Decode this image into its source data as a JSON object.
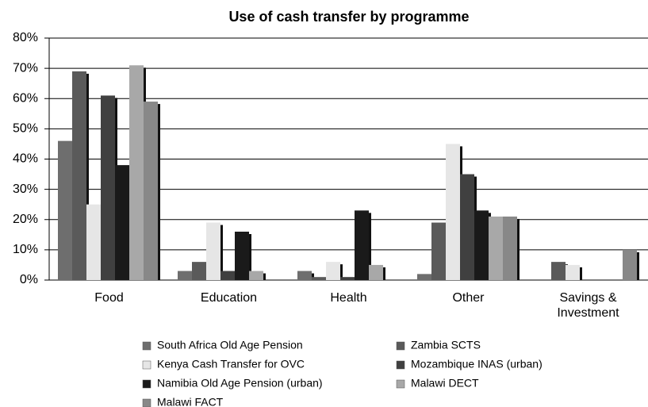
{
  "chart_data": {
    "type": "bar",
    "title": "Use of cash transfer by programme",
    "categories": [
      "Food",
      "Education",
      "Health",
      "Other",
      "Savings & Investment"
    ],
    "series": [
      {
        "name": "South Africa Old Age Pension",
        "color": "#6e6e6e",
        "values": [
          46,
          3,
          3,
          2,
          0
        ]
      },
      {
        "name": "Zambia SCTS",
        "color": "#5a5a5a",
        "values": [
          69,
          6,
          1,
          19,
          6
        ]
      },
      {
        "name": "Kenya Cash Transfer for OVC",
        "color": "#e6e6e6",
        "values": [
          25,
          19,
          6,
          45,
          5
        ]
      },
      {
        "name": "Mozambique INAS (urban)",
        "color": "#404040",
        "values": [
          61,
          3,
          1,
          35,
          0
        ]
      },
      {
        "name": "Namibia Old Age Pension (urban)",
        "color": "#1a1a1a",
        "values": [
          38,
          16,
          23,
          23,
          0
        ]
      },
      {
        "name": "Malawi DECT",
        "color": "#a8a8a8",
        "values": [
          71,
          3,
          5,
          21,
          0
        ]
      },
      {
        "name": "Malawi FACT",
        "color": "#888888",
        "values": [
          59,
          0,
          0,
          21,
          10
        ]
      }
    ],
    "ylim": [
      0,
      80
    ],
    "yticks": [
      {
        "value": 0,
        "label": "0%"
      },
      {
        "value": 10,
        "label": "10%"
      },
      {
        "value": 20,
        "label": "20%"
      },
      {
        "value": 30,
        "label": "30%"
      },
      {
        "value": 40,
        "label": "40%"
      },
      {
        "value": 50,
        "label": "50%"
      },
      {
        "value": 60,
        "label": "60%"
      },
      {
        "value": 70,
        "label": "70%"
      },
      {
        "value": 80,
        "label": "80%"
      }
    ],
    "grid": true
  }
}
